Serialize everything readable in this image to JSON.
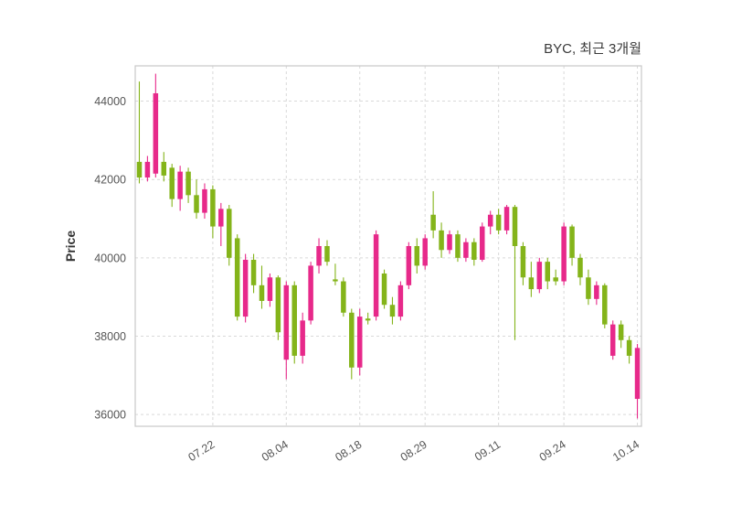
{
  "chart_data": {
    "type": "candlestick",
    "title": "BYC, 최근 3개월",
    "ylabel": "Price",
    "grid": "dashed",
    "ylim": [
      35700,
      44900
    ],
    "y_ticks": [
      36000,
      38000,
      40000,
      42000,
      44000
    ],
    "x_ticks": [
      {
        "i": 9,
        "label": "07.22"
      },
      {
        "i": 18,
        "label": "08.04"
      },
      {
        "i": 27,
        "label": "08.18"
      },
      {
        "i": 35,
        "label": "08.29"
      },
      {
        "i": 44,
        "label": "09.11"
      },
      {
        "i": 52,
        "label": "09.24"
      },
      {
        "i": 61,
        "label": "10.14"
      }
    ],
    "colors": {
      "up": "#e7298a",
      "down": "#84b41a",
      "grid": "#d9d9d9",
      "border": "#c8c8c8",
      "tick_text": "#555555",
      "title_text": "#3a3a3a"
    },
    "candles": [
      [
        42450,
        44500,
        41900,
        42050
      ],
      [
        42050,
        42600,
        41950,
        42450
      ],
      [
        42150,
        44700,
        42050,
        44200
      ],
      [
        42450,
        42700,
        41950,
        42100
      ],
      [
        42300,
        42400,
        41300,
        41500
      ],
      [
        41500,
        42350,
        41200,
        42200
      ],
      [
        42200,
        42300,
        41400,
        41600
      ],
      [
        41600,
        42000,
        41000,
        41150
      ],
      [
        41150,
        41900,
        41000,
        41750
      ],
      [
        41750,
        41850,
        40500,
        40800
      ],
      [
        40800,
        41400,
        40300,
        41250
      ],
      [
        41250,
        41350,
        39800,
        40000
      ],
      [
        40500,
        40600,
        38400,
        38500
      ],
      [
        38500,
        40100,
        38350,
        39950
      ],
      [
        39950,
        40100,
        39100,
        39300
      ],
      [
        39300,
        39800,
        38700,
        38900
      ],
      [
        38900,
        39600,
        38750,
        39500
      ],
      [
        39500,
        39550,
        37900,
        38100
      ],
      [
        37400,
        39400,
        36900,
        39300
      ],
      [
        39300,
        39400,
        37300,
        37500
      ],
      [
        37500,
        38600,
        37300,
        38400
      ],
      [
        38400,
        39900,
        38300,
        39800
      ],
      [
        39800,
        40500,
        39600,
        40300
      ],
      [
        40300,
        40450,
        39800,
        39900
      ],
      [
        39450,
        39850,
        39300,
        39400
      ],
      [
        39400,
        39500,
        38500,
        38600
      ],
      [
        38600,
        38700,
        36900,
        37200
      ],
      [
        37200,
        38700,
        37000,
        38500
      ],
      [
        38450,
        38600,
        38300,
        38400
      ],
      [
        38500,
        40700,
        38400,
        40600
      ],
      [
        39600,
        39700,
        38700,
        38800
      ],
      [
        38800,
        39000,
        38300,
        38500
      ],
      [
        38500,
        39400,
        38400,
        39300
      ],
      [
        39300,
        40400,
        39200,
        40300
      ],
      [
        40300,
        40500,
        39600,
        39800
      ],
      [
        39800,
        40600,
        39700,
        40500
      ],
      [
        41100,
        41700,
        40500,
        40700
      ],
      [
        40700,
        40900,
        40000,
        40200
      ],
      [
        40200,
        40700,
        40100,
        40600
      ],
      [
        40600,
        40700,
        39900,
        40000
      ],
      [
        40000,
        40500,
        39900,
        40400
      ],
      [
        40400,
        40500,
        39800,
        39950
      ],
      [
        39950,
        40900,
        39900,
        40800
      ],
      [
        40800,
        41200,
        40600,
        41100
      ],
      [
        41100,
        41250,
        40600,
        40700
      ],
      [
        40700,
        41350,
        40600,
        41300
      ],
      [
        41300,
        41350,
        37900,
        40300
      ],
      [
        40300,
        40400,
        39300,
        39500
      ],
      [
        39500,
        39900,
        39000,
        39200
      ],
      [
        39200,
        40000,
        39100,
        39900
      ],
      [
        39900,
        40000,
        39200,
        39400
      ],
      [
        39500,
        39700,
        39300,
        39400
      ],
      [
        39400,
        40900,
        39300,
        40800
      ],
      [
        40800,
        40850,
        39800,
        40000
      ],
      [
        40000,
        40100,
        39300,
        39500
      ],
      [
        39500,
        39700,
        38800,
        38950
      ],
      [
        38950,
        39400,
        38800,
        39300
      ],
      [
        39300,
        39350,
        38200,
        38300
      ],
      [
        37500,
        38400,
        37400,
        38300
      ],
      [
        38300,
        38400,
        37700,
        37900
      ],
      [
        37900,
        38000,
        37300,
        37500
      ],
      [
        36400,
        37800,
        35900,
        37700
      ]
    ]
  }
}
